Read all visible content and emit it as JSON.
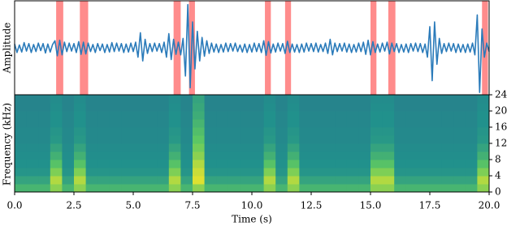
{
  "chart_data": [
    {
      "type": "line",
      "ylabel": "Amplitude",
      "color": "#2b7bba",
      "xlim": [
        0,
        20
      ],
      "ylim": [
        -1,
        1
      ],
      "highlights": [
        [
          1.75,
          2.05
        ],
        [
          2.75,
          3.1
        ],
        [
          6.7,
          7.0
        ],
        [
          7.35,
          7.6
        ],
        [
          10.55,
          10.8
        ],
        [
          11.4,
          11.65
        ],
        [
          15.0,
          15.25
        ],
        [
          15.75,
          16.05
        ],
        [
          19.7,
          19.95
        ]
      ],
      "highlight_color": "#ff8080",
      "x": [
        0,
        0.1,
        0.2,
        0.3,
        0.4,
        0.5,
        0.6,
        0.7,
        0.8,
        0.9,
        1,
        1.1,
        1.2,
        1.3,
        1.4,
        1.5,
        1.6,
        1.7,
        1.8,
        1.9,
        2,
        2.1,
        2.2,
        2.3,
        2.4,
        2.5,
        2.6,
        2.7,
        2.8,
        2.9,
        3,
        3.1,
        3.2,
        3.3,
        3.4,
        3.5,
        3.6,
        3.7,
        3.8,
        3.9,
        4,
        4.1,
        4.2,
        4.3,
        4.4,
        4.5,
        4.6,
        4.7,
        4.8,
        4.9,
        5,
        5.1,
        5.2,
        5.3,
        5.4,
        5.5,
        5.6,
        5.7,
        5.8,
        5.9,
        6,
        6.1,
        6.2,
        6.3,
        6.4,
        6.5,
        6.6,
        6.7,
        6.8,
        6.9,
        7,
        7.1,
        7.2,
        7.3,
        7.4,
        7.5,
        7.6,
        7.7,
        7.8,
        7.9,
        8,
        8.1,
        8.2,
        8.3,
        8.4,
        8.5,
        8.6,
        8.7,
        8.8,
        8.9,
        9,
        9.1,
        9.2,
        9.3,
        9.4,
        9.5,
        9.6,
        9.7,
        9.8,
        9.9,
        10,
        10.1,
        10.2,
        10.3,
        10.4,
        10.5,
        10.6,
        10.7,
        10.8,
        10.9,
        11,
        11.1,
        11.2,
        11.3,
        11.4,
        11.5,
        11.6,
        11.7,
        11.8,
        11.9,
        12,
        12.1,
        12.2,
        12.3,
        12.4,
        12.5,
        12.6,
        12.7,
        12.8,
        12.9,
        13,
        13.1,
        13.2,
        13.3,
        13.4,
        13.5,
        13.6,
        13.7,
        13.8,
        13.9,
        14,
        14.1,
        14.2,
        14.3,
        14.4,
        14.5,
        14.6,
        14.7,
        14.8,
        14.9,
        15,
        15.1,
        15.2,
        15.3,
        15.4,
        15.5,
        15.6,
        15.7,
        15.8,
        15.9,
        16,
        16.1,
        16.2,
        16.3,
        16.4,
        16.5,
        16.6,
        16.7,
        16.8,
        16.9,
        17,
        17.1,
        17.2,
        17.3,
        17.4,
        17.5,
        17.6,
        17.7,
        17.8,
        17.9,
        18,
        18.1,
        18.2,
        18.3,
        18.4,
        18.5,
        18.6,
        18.7,
        18.8,
        18.9,
        19,
        19.1,
        19.2,
        19.3,
        19.4,
        19.5,
        19.6,
        19.7,
        19.8,
        19.9,
        20
      ],
      "values": [
        0.08,
        -0.1,
        0.06,
        -0.09,
        0.11,
        -0.07,
        0.09,
        -0.1,
        0.07,
        -0.08,
        0.1,
        -0.06,
        0.09,
        -0.11,
        0.08,
        -0.09,
        0.07,
        0.15,
        -0.17,
        0.16,
        -0.15,
        0.12,
        -0.08,
        0.1,
        -0.07,
        0.09,
        -0.1,
        0.13,
        -0.14,
        0.12,
        -0.13,
        0.1,
        -0.08,
        0.07,
        -0.1,
        0.09,
        -0.06,
        0.08,
        -0.1,
        0.07,
        -0.09,
        0.11,
        -0.08,
        0.1,
        -0.07,
        0.09,
        -0.1,
        0.08,
        -0.09,
        0.1,
        -0.08,
        0.12,
        -0.2,
        0.32,
        -0.28,
        0.18,
        -0.12,
        0.09,
        -0.08,
        0.1,
        -0.07,
        0.09,
        -0.1,
        0.12,
        -0.2,
        0.3,
        -0.25,
        0.18,
        -0.14,
        0.12,
        -0.15,
        0.2,
        -0.6,
        0.92,
        -0.85,
        0.55,
        -0.45,
        0.35,
        -0.28,
        0.22,
        -0.18,
        0.15,
        -0.12,
        0.1,
        -0.09,
        0.08,
        -0.1,
        0.07,
        -0.09,
        0.1,
        -0.08,
        0.09,
        -0.07,
        0.1,
        -0.08,
        0.06,
        -0.09,
        0.08,
        -0.1,
        0.07,
        -0.09,
        0.1,
        -0.08,
        0.09,
        -0.1,
        0.15,
        -0.16,
        0.13,
        -0.11,
        0.08,
        -0.09,
        0.1,
        -0.07,
        0.09,
        -0.12,
        0.14,
        -0.1,
        0.08,
        -0.09,
        0.07,
        -0.1,
        0.08,
        -0.09,
        0.1,
        -0.07,
        0.09,
        -0.08,
        0.1,
        -0.09,
        0.07,
        -0.08,
        0.1,
        -0.12,
        0.18,
        -0.15,
        0.1,
        -0.08,
        0.09,
        -0.07,
        0.1,
        -0.09,
        0.08,
        -0.1,
        0.07,
        -0.09,
        0.1,
        -0.08,
        0.12,
        -0.14,
        0.16,
        -0.15,
        0.13,
        -0.1,
        0.08,
        -0.09,
        0.1,
        -0.07,
        0.12,
        -0.13,
        0.1,
        -0.08,
        0.09,
        -0.1,
        0.07,
        -0.09,
        0.08,
        -0.1,
        0.09,
        -0.07,
        0.1,
        -0.08,
        0.09,
        -0.1,
        0.08,
        -0.2,
        0.45,
        -0.7,
        0.55,
        -0.35,
        0.2,
        -0.12,
        0.09,
        -0.08,
        0.1,
        -0.07,
        0.09,
        -0.1,
        0.08,
        -0.09,
        0.07,
        -0.1,
        0.08,
        -0.09,
        0.1,
        -0.15,
        0.7,
        -0.95,
        0.4,
        -0.2,
        0.1,
        -0.08
      ]
    },
    {
      "type": "heatmap",
      "ylabel": "Frequency (kHz)",
      "xlabel": "Time (s)",
      "colormap": "viridis",
      "zlim": [
        0,
        1
      ],
      "xlim": [
        0,
        20
      ],
      "ylim": [
        0,
        24
      ],
      "xticks": [
        {
          "value": 0,
          "label": "0.0"
        },
        2.5,
        {
          "value": 5,
          "label": "5.0"
        },
        7.5,
        {
          "value": 10,
          "label": "10.0"
        },
        12.5,
        {
          "value": 15,
          "label": "15.0"
        },
        17.5,
        {
          "value": 20,
          "label": "20.0"
        }
      ],
      "yticks": [
        0,
        4,
        8,
        12,
        16,
        20,
        24
      ],
      "z": [
        [
          0.66,
          0.66,
          0.66,
          0.82,
          0.66,
          0.82,
          0.66,
          0.66,
          0.66,
          0.66,
          0.66,
          0.66,
          0.66,
          0.82,
          0.66,
          0.82,
          0.66,
          0.66,
          0.66,
          0.66,
          0.66,
          0.82,
          0.66,
          0.82,
          0.66,
          0.66,
          0.66,
          0.66,
          0.66,
          0.66,
          0.82,
          0.82,
          0.66,
          0.66,
          0.66,
          0.66,
          0.66,
          0.66,
          0.66,
          0.82
        ],
        [
          0.58,
          0.58,
          0.58,
          0.88,
          0.58,
          0.88,
          0.58,
          0.58,
          0.58,
          0.58,
          0.58,
          0.58,
          0.58,
          0.88,
          0.58,
          0.95,
          0.58,
          0.58,
          0.58,
          0.58,
          0.58,
          0.88,
          0.58,
          0.88,
          0.58,
          0.58,
          0.58,
          0.58,
          0.58,
          0.58,
          0.88,
          0.88,
          0.58,
          0.58,
          0.58,
          0.58,
          0.58,
          0.58,
          0.58,
          0.88
        ],
        [
          0.52,
          0.52,
          0.52,
          0.8,
          0.52,
          0.8,
          0.52,
          0.52,
          0.52,
          0.52,
          0.52,
          0.52,
          0.52,
          0.8,
          0.52,
          0.92,
          0.52,
          0.52,
          0.52,
          0.52,
          0.52,
          0.8,
          0.52,
          0.8,
          0.52,
          0.52,
          0.52,
          0.52,
          0.52,
          0.52,
          0.8,
          0.8,
          0.52,
          0.52,
          0.52,
          0.52,
          0.52,
          0.52,
          0.52,
          0.8
        ],
        [
          0.5,
          0.5,
          0.5,
          0.72,
          0.5,
          0.72,
          0.5,
          0.5,
          0.5,
          0.5,
          0.5,
          0.5,
          0.5,
          0.72,
          0.5,
          0.88,
          0.5,
          0.5,
          0.5,
          0.5,
          0.5,
          0.72,
          0.5,
          0.72,
          0.5,
          0.5,
          0.5,
          0.5,
          0.5,
          0.5,
          0.72,
          0.72,
          0.5,
          0.5,
          0.5,
          0.5,
          0.5,
          0.5,
          0.5,
          0.72
        ],
        [
          0.49,
          0.49,
          0.49,
          0.64,
          0.49,
          0.64,
          0.49,
          0.49,
          0.49,
          0.49,
          0.49,
          0.49,
          0.49,
          0.64,
          0.49,
          0.82,
          0.49,
          0.49,
          0.49,
          0.49,
          0.49,
          0.64,
          0.49,
          0.64,
          0.49,
          0.49,
          0.49,
          0.49,
          0.49,
          0.49,
          0.64,
          0.64,
          0.49,
          0.49,
          0.49,
          0.49,
          0.49,
          0.49,
          0.49,
          0.64
        ],
        [
          0.48,
          0.48,
          0.48,
          0.58,
          0.48,
          0.58,
          0.48,
          0.48,
          0.48,
          0.48,
          0.48,
          0.48,
          0.48,
          0.58,
          0.48,
          0.78,
          0.48,
          0.48,
          0.48,
          0.48,
          0.48,
          0.58,
          0.48,
          0.58,
          0.48,
          0.48,
          0.48,
          0.48,
          0.48,
          0.48,
          0.58,
          0.58,
          0.48,
          0.48,
          0.48,
          0.48,
          0.48,
          0.48,
          0.48,
          0.58
        ],
        [
          0.47,
          0.47,
          0.47,
          0.53,
          0.47,
          0.53,
          0.47,
          0.47,
          0.47,
          0.47,
          0.47,
          0.47,
          0.47,
          0.53,
          0.47,
          0.74,
          0.47,
          0.47,
          0.47,
          0.47,
          0.47,
          0.53,
          0.47,
          0.53,
          0.47,
          0.47,
          0.47,
          0.47,
          0.47,
          0.47,
          0.53,
          0.53,
          0.47,
          0.47,
          0.47,
          0.47,
          0.47,
          0.47,
          0.47,
          0.53
        ],
        [
          0.47,
          0.47,
          0.47,
          0.52,
          0.47,
          0.52,
          0.47,
          0.47,
          0.47,
          0.47,
          0.47,
          0.47,
          0.47,
          0.52,
          0.47,
          0.7,
          0.47,
          0.47,
          0.47,
          0.47,
          0.47,
          0.52,
          0.47,
          0.52,
          0.47,
          0.47,
          0.47,
          0.47,
          0.47,
          0.47,
          0.52,
          0.52,
          0.47,
          0.47,
          0.47,
          0.47,
          0.47,
          0.47,
          0.47,
          0.52
        ],
        [
          0.46,
          0.46,
          0.46,
          0.5,
          0.46,
          0.5,
          0.46,
          0.46,
          0.46,
          0.46,
          0.46,
          0.46,
          0.46,
          0.5,
          0.46,
          0.66,
          0.46,
          0.46,
          0.46,
          0.46,
          0.46,
          0.5,
          0.46,
          0.5,
          0.46,
          0.46,
          0.46,
          0.46,
          0.46,
          0.46,
          0.5,
          0.5,
          0.46,
          0.46,
          0.46,
          0.46,
          0.46,
          0.46,
          0.46,
          0.5
        ],
        [
          0.46,
          0.46,
          0.46,
          0.5,
          0.46,
          0.5,
          0.46,
          0.46,
          0.46,
          0.46,
          0.46,
          0.46,
          0.46,
          0.5,
          0.46,
          0.62,
          0.46,
          0.46,
          0.46,
          0.46,
          0.46,
          0.5,
          0.46,
          0.5,
          0.46,
          0.46,
          0.46,
          0.46,
          0.46,
          0.46,
          0.5,
          0.5,
          0.46,
          0.46,
          0.46,
          0.46,
          0.46,
          0.46,
          0.46,
          0.5
        ],
        [
          0.45,
          0.45,
          0.45,
          0.49,
          0.45,
          0.49,
          0.45,
          0.45,
          0.45,
          0.45,
          0.45,
          0.45,
          0.45,
          0.49,
          0.45,
          0.6,
          0.45,
          0.45,
          0.45,
          0.45,
          0.45,
          0.49,
          0.45,
          0.49,
          0.45,
          0.45,
          0.45,
          0.45,
          0.45,
          0.45,
          0.49,
          0.49,
          0.45,
          0.45,
          0.45,
          0.45,
          0.45,
          0.45,
          0.45,
          0.49
        ],
        [
          0.45,
          0.45,
          0.45,
          0.48,
          0.45,
          0.48,
          0.45,
          0.45,
          0.45,
          0.45,
          0.45,
          0.45,
          0.45,
          0.48,
          0.45,
          0.58,
          0.45,
          0.45,
          0.45,
          0.45,
          0.45,
          0.48,
          0.45,
          0.48,
          0.45,
          0.45,
          0.45,
          0.45,
          0.45,
          0.45,
          0.48,
          0.48,
          0.45,
          0.45,
          0.45,
          0.45,
          0.45,
          0.45,
          0.45,
          0.48
        ]
      ]
    }
  ]
}
